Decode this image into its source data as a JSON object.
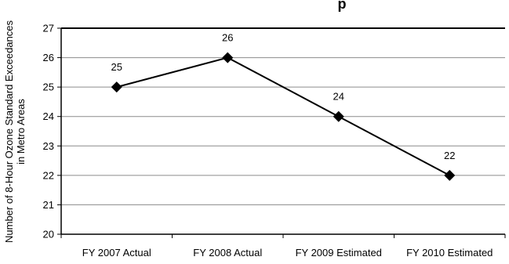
{
  "chart_data": {
    "type": "line",
    "title": "",
    "visible_title_fragment": "p",
    "xlabel": "",
    "ylabel_lines": [
      "Number of 8-Hour Ozone Standard Exceedances",
      "in Metro Areas"
    ],
    "categories": [
      "FY 2007 Actual",
      "FY 2008 Actual",
      "FY 2009 Estimated",
      "FY 2010 Estimated"
    ],
    "series": [
      {
        "values": [
          25,
          26,
          24,
          22
        ]
      }
    ],
    "data_labels": [
      "25",
      "26",
      "24",
      "22"
    ],
    "ylim": [
      20,
      27
    ],
    "yticks": [
      "20",
      "21",
      "22",
      "23",
      "24",
      "25",
      "26",
      "27"
    ],
    "grid": "horizontal",
    "legend": "none",
    "line_color": "#000000",
    "marker": "diamond"
  }
}
